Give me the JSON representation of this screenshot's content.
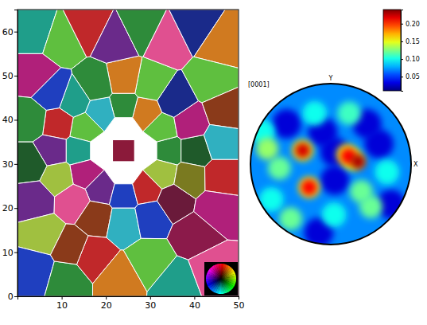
{
  "chart_data": [
    {
      "type": "grain_map",
      "xlim": [
        0,
        50
      ],
      "ylim": [
        0,
        65
      ],
      "xticks": [
        10,
        20,
        30,
        40,
        50
      ],
      "yticks": [
        0,
        10,
        20,
        30,
        40,
        50,
        60
      ],
      "x": [
        24,
        29,
        24,
        19,
        24,
        34,
        32.7,
        29,
        24,
        19,
        15.3,
        14,
        15.3,
        19,
        24,
        29,
        32.7,
        40,
        38.8,
        35.3,
        30.1,
        24,
        17.9,
        12.7,
        9.2,
        8,
        9.2,
        12.7,
        17.9,
        24,
        30.1,
        35.3,
        38.8,
        4,
        10,
        16,
        22,
        28,
        34,
        40,
        46,
        4,
        8,
        44,
        47,
        3,
        3,
        46,
        46,
        4,
        6,
        45,
        40,
        4,
        11,
        17,
        23,
        30,
        36,
        44,
        12
      ],
      "y": [
        33,
        33,
        38,
        33,
        28,
        33,
        38,
        41.7,
        43,
        41.7,
        38,
        33,
        28,
        24.3,
        23,
        24.3,
        28,
        33,
        39.1,
        44.3,
        47.8,
        49,
        47.8,
        44.3,
        39.1,
        33,
        26.9,
        21.7,
        18.2,
        17,
        18.2,
        21.7,
        26.9,
        60,
        58,
        61,
        58,
        61,
        58,
        61,
        57,
        50,
        46,
        49,
        42,
        40,
        30,
        35,
        27,
        22,
        14,
        20,
        14,
        6,
        4,
        9,
        4,
        8,
        3,
        6,
        11
      ],
      "colors": [
        "#8b1a3a",
        "#ffffff",
        "#ffffff",
        "#ffffff",
        "#ffffff",
        "#2e8b3a",
        "#5fbf3f",
        "#d07a20",
        "#2e8b3a",
        "#30b0c0",
        "#5fbf3f",
        "#1f9e8a",
        "#b0207a",
        "#6a2a8a",
        "#1f3fbf",
        "#c0282a",
        "#a0c040",
        "#1f5a2a",
        "#b0207a",
        "#1a2a8a",
        "#5fbf3f",
        "#d07a20",
        "#2e8b3a",
        "#1f9e8a",
        "#c0282a",
        "#6a2a8a",
        "#a0c040",
        "#e05090",
        "#8a3a1a",
        "#30b0c0",
        "#1f3fbf",
        "#6a1a3a",
        "#7a7a20",
        "#1f9e8a",
        "#5fbf3f",
        "#c0282a",
        "#6a2a8a",
        "#2e8b3a",
        "#e05090",
        "#1a2a8a",
        "#d07a20",
        "#b0207a",
        "#1f3fbf",
        "#5fbf3f",
        "#8a3a1a",
        "#2e8b3a",
        "#1f5a2a",
        "#30b0c0",
        "#c0282a",
        "#6a2a8a",
        "#a0c040",
        "#b0207a",
        "#8b1a4a",
        "#1f3fbf",
        "#2e8b3a",
        "#c0282a",
        "#d07a20",
        "#5fbf3f",
        "#1f9e8a",
        "#e05090",
        "#8a3a1a"
      ]
    },
    {
      "type": "pole_figure",
      "title": "[0001]",
      "x_label": "X",
      "y_label": "Y",
      "tick_labels": false,
      "xlim": [
        -1,
        1
      ],
      "ylim": [
        -1,
        1
      ],
      "background_value": 0.07,
      "x": [
        0.05,
        0.05,
        0.45,
        0.6,
        -0.55,
        -0.15,
        0.75,
        -0.1,
        -0.74,
        -0.2,
        0.7,
        0.04,
        -0.85,
        0.23,
        -0.64,
        -0.5,
        0.5,
        0.38,
        -0.79,
        -0.35,
        0.28,
        -0.27,
        0.2,
        -0.27,
        0.22,
        -0.35,
        0.34
      ],
      "y": [
        0.15,
        -0.2,
        0.5,
        0.25,
        0.5,
        -0.85,
        -0.5,
        0.4,
        -0.44,
        0.63,
        -0.1,
        -0.63,
        0.4,
        0.63,
        -0.05,
        -0.68,
        -0.53,
        -0.34,
        0.19,
        0.17,
        0.05,
        -0.29,
        0.12,
        -0.29,
        0.1,
        0.17,
        0.03
      ],
      "values": [
        0.03,
        0.03,
        0.03,
        0.03,
        0.03,
        0.03,
        0.03,
        0.03,
        0.1,
        0.1,
        0.1,
        0.1,
        0.1,
        0.11,
        0.12,
        0.12,
        0.12,
        0.12,
        0.13,
        0.15,
        0.15,
        0.15,
        0.15,
        0.21,
        0.21,
        0.22,
        0.23
      ],
      "colorbar_lim": [
        0.01,
        0.24
      ],
      "colorbar_ticks": [
        0.05,
        {
          "value": 0.1,
          "label": "0.10"
        },
        0.15,
        {
          "value": 0.2,
          "label": "0.20"
        }
      ]
    }
  ]
}
